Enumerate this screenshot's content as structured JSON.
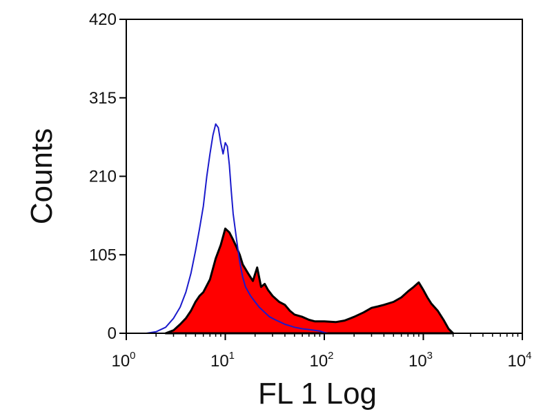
{
  "chart_data": {
    "type": "area",
    "title": "",
    "xlabel": "FL 1 Log",
    "ylabel": "Counts",
    "x_scale": "log",
    "xlim": [
      1,
      10000
    ],
    "ylim": [
      0,
      420
    ],
    "x_ticks": [
      {
        "value": 1,
        "base": "10",
        "exp": "0"
      },
      {
        "value": 10,
        "base": "10",
        "exp": "1"
      },
      {
        "value": 100,
        "base": "10",
        "exp": "2"
      },
      {
        "value": 1000,
        "base": "10",
        "exp": "3"
      },
      {
        "value": 10000,
        "base": "10",
        "exp": "4"
      }
    ],
    "y_ticks": [
      {
        "value": 0,
        "label": "0"
      },
      {
        "value": 105,
        "label": "105"
      },
      {
        "value": 210,
        "label": "210"
      },
      {
        "value": 315,
        "label": "315"
      },
      {
        "value": 420,
        "label": "420"
      }
    ],
    "grid": false,
    "legend": "none",
    "series": [
      {
        "style": "filled",
        "fill": "#ff0000",
        "edge": "#000000",
        "x": [
          2.5,
          3.0,
          3.5,
          4.0,
          4.5,
          5.0,
          5.5,
          6.0,
          7.0,
          8.0,
          9.0,
          10.0,
          11.0,
          12.0,
          13.0,
          14.0,
          15.0,
          17.0,
          19.0,
          21.0,
          23.0,
          25.0,
          27.0,
          30.0,
          35.0,
          40.0,
          45.0,
          50.0,
          60.0,
          70.0,
          80.0,
          100.0,
          130.0,
          160.0,
          200.0,
          250.0,
          300.0,
          350.0,
          400.0,
          500.0,
          600.0,
          700.0,
          800.0,
          900.0,
          1000.0,
          1100.0,
          1200.0,
          1400.0,
          1600.0,
          1800.0,
          2000.0
        ],
        "y": [
          0,
          4,
          12,
          20,
          30,
          42,
          50,
          55,
          72,
          100,
          118,
          140,
          135,
          125,
          115,
          105,
          92,
          80,
          70,
          88,
          62,
          66,
          58,
          50,
          42,
          38,
          30,
          25,
          22,
          18,
          16,
          16,
          15,
          17,
          22,
          28,
          34,
          36,
          38,
          42,
          48,
          56,
          62,
          68,
          58,
          48,
          40,
          30,
          18,
          6,
          0
        ]
      },
      {
        "style": "outline",
        "stroke": "#1a1acc",
        "x": [
          1.6,
          2.0,
          2.5,
          3.0,
          3.5,
          4.0,
          4.5,
          5.0,
          5.5,
          6.0,
          6.5,
          7.0,
          7.5,
          8.0,
          8.5,
          9.0,
          9.5,
          10.0,
          10.5,
          11.0,
          11.5,
          12.0,
          13.0,
          14.0,
          15.0,
          16.0,
          18.0,
          20.0,
          22.0,
          25.0,
          28.0,
          32.0,
          36.0,
          40.0,
          45.0,
          50.0,
          55.0,
          60.0,
          70.0,
          80.0,
          90.0,
          100.0,
          110.0
        ],
        "y": [
          0,
          2,
          8,
          20,
          35,
          55,
          80,
          110,
          140,
          170,
          210,
          240,
          265,
          280,
          275,
          255,
          240,
          255,
          250,
          225,
          190,
          160,
          125,
          95,
          75,
          62,
          50,
          42,
          35,
          28,
          22,
          18,
          15,
          12,
          10,
          8,
          7,
          6,
          5,
          4,
          3,
          1,
          0
        ]
      }
    ]
  }
}
